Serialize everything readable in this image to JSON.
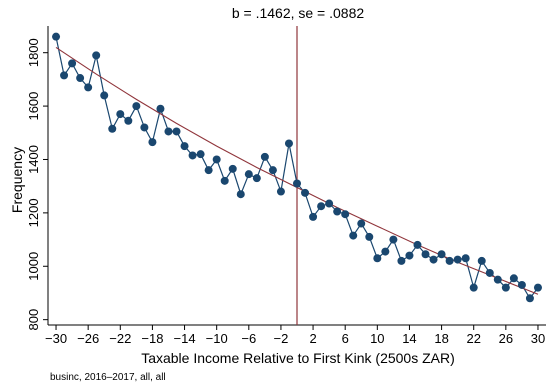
{
  "chart_data": {
    "type": "scatter",
    "title": "b = .1462, se = .0882",
    "xlabel": "Taxable Income Relative to First Kink (2500s ZAR)",
    "ylabel": "Frequency",
    "note": "businc, 2016–2017, all, all",
    "xlim": [
      -31,
      31
    ],
    "ylim": [
      780,
      1900
    ],
    "xticks": [
      -30,
      -26,
      -22,
      -18,
      -14,
      -10,
      -6,
      -2,
      2,
      6,
      10,
      14,
      18,
      22,
      26,
      30
    ],
    "yticks": [
      800,
      1000,
      1200,
      1400,
      1600,
      1800
    ],
    "vline": 0,
    "colors": {
      "series": "#1a476f",
      "fit": "#90353b",
      "vline": "#90353b"
    },
    "series": [
      {
        "x": [
          -30,
          -29,
          -28,
          -27,
          -26,
          -25,
          -24,
          -23,
          -22,
          -21,
          -20,
          -19,
          -18,
          -17,
          -16,
          -15,
          -14,
          -13,
          -12,
          -11,
          -10,
          -9,
          -8,
          -7,
          -6,
          -5,
          -4,
          -3,
          -2,
          -1,
          0,
          1,
          2,
          3,
          4,
          5,
          6,
          7,
          8,
          9,
          10,
          11,
          12,
          13,
          14,
          15,
          16,
          17,
          18,
          19,
          20,
          21,
          22,
          23,
          24,
          25,
          26,
          27,
          28,
          29,
          30
        ],
        "y": [
          1860,
          1715,
          1760,
          1705,
          1670,
          1790,
          1640,
          1515,
          1570,
          1545,
          1600,
          1520,
          1465,
          1590,
          1505,
          1505,
          1450,
          1415,
          1420,
          1360,
          1400,
          1320,
          1365,
          1270,
          1345,
          1330,
          1410,
          1360,
          1280,
          1460,
          1310,
          1275,
          1185,
          1225,
          1235,
          1205,
          1195,
          1115,
          1160,
          1110,
          1030,
          1055,
          1100,
          1020,
          1040,
          1080,
          1045,
          1025,
          1045,
          1020,
          1025,
          1030,
          920,
          1020,
          975,
          950,
          920,
          955,
          930,
          880,
          920
        ]
      }
    ],
    "fit": [
      [
        -30,
        1820
      ],
      [
        -25,
        1720
      ],
      [
        -20,
        1625
      ],
      [
        -15,
        1535
      ],
      [
        -10,
        1450
      ],
      [
        -5,
        1370
      ],
      [
        0,
        1295
      ],
      [
        5,
        1220
      ],
      [
        10,
        1150
      ],
      [
        15,
        1080
      ],
      [
        20,
        1015
      ],
      [
        25,
        955
      ],
      [
        30,
        895
      ]
    ]
  }
}
